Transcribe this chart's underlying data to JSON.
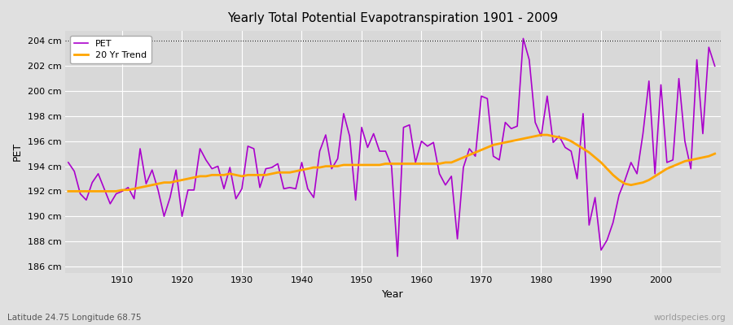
{
  "title": "Yearly Total Potential Evapotranspiration 1901 - 2009",
  "xlabel": "Year",
  "ylabel": "PET",
  "subtitle_left": "Latitude 24.75 Longitude 68.75",
  "subtitle_right": "worldspecies.org",
  "ylim": [
    185.5,
    204.8
  ],
  "yticks": [
    186,
    188,
    190,
    192,
    194,
    196,
    198,
    200,
    202,
    204
  ],
  "ytick_labels": [
    "186 cm",
    "188 cm",
    "190 cm",
    "192 cm",
    "194 cm",
    "196 cm",
    "198 cm",
    "200 cm",
    "202 cm",
    "204 cm"
  ],
  "xlim": [
    1900.5,
    2010
  ],
  "xticks": [
    1910,
    1920,
    1930,
    1940,
    1950,
    1960,
    1970,
    1980,
    1990,
    2000
  ],
  "pet_color": "#AA00CC",
  "trend_color": "#FFA500",
  "bg_color": "#E0E0E0",
  "plot_bg_color": "#D8D8D8",
  "grid_color": "#FFFFFF",
  "dotted_line_y": 204,
  "pet_years": [
    1901,
    1902,
    1903,
    1904,
    1905,
    1906,
    1907,
    1908,
    1909,
    1910,
    1911,
    1912,
    1913,
    1914,
    1915,
    1916,
    1917,
    1918,
    1919,
    1920,
    1921,
    1922,
    1923,
    1924,
    1925,
    1926,
    1927,
    1928,
    1929,
    1930,
    1931,
    1932,
    1933,
    1934,
    1935,
    1936,
    1937,
    1938,
    1939,
    1940,
    1941,
    1942,
    1943,
    1944,
    1945,
    1946,
    1947,
    1948,
    1949,
    1950,
    1951,
    1952,
    1953,
    1954,
    1955,
    1956,
    1957,
    1958,
    1959,
    1960,
    1961,
    1962,
    1963,
    1964,
    1965,
    1966,
    1967,
    1968,
    1969,
    1970,
    1971,
    1972,
    1973,
    1974,
    1975,
    1976,
    1977,
    1978,
    1979,
    1980,
    1981,
    1982,
    1983,
    1984,
    1985,
    1986,
    1987,
    1988,
    1989,
    1990,
    1991,
    1992,
    1993,
    1994,
    1995,
    1996,
    1997,
    1998,
    1999,
    2000,
    2001,
    2002,
    2003,
    2004,
    2005,
    2006,
    2007,
    2008,
    2009
  ],
  "pet_values": [
    194.3,
    193.6,
    191.8,
    191.3,
    192.7,
    193.4,
    192.2,
    191.0,
    191.8,
    192.0,
    192.3,
    191.4,
    195.4,
    192.6,
    193.7,
    192.1,
    190.0,
    191.5,
    193.7,
    190.0,
    192.1,
    192.1,
    195.4,
    194.5,
    193.8,
    194.0,
    192.2,
    193.9,
    191.4,
    192.2,
    195.6,
    195.4,
    192.3,
    193.8,
    193.9,
    194.2,
    192.2,
    192.3,
    192.2,
    194.3,
    192.2,
    191.5,
    195.2,
    196.5,
    193.8,
    194.6,
    198.2,
    196.4,
    191.3,
    197.1,
    195.5,
    196.6,
    195.2,
    195.2,
    194.0,
    186.8,
    197.1,
    197.3,
    194.3,
    196.0,
    195.6,
    195.9,
    193.4,
    192.5,
    193.2,
    188.2,
    193.9,
    195.4,
    194.8,
    199.6,
    199.4,
    194.8,
    194.5,
    197.5,
    197.0,
    197.2,
    204.2,
    202.5,
    197.5,
    196.4,
    199.6,
    195.9,
    196.4,
    195.5,
    195.2,
    193.0,
    198.2,
    189.3,
    191.5,
    187.3,
    188.1,
    189.5,
    191.7,
    192.9,
    194.3,
    193.4,
    196.6,
    200.8,
    193.4,
    200.5,
    194.3,
    194.5,
    201.0,
    196.0,
    193.8,
    202.5,
    196.6,
    203.5,
    202.0
  ],
  "trend_years": [
    1901,
    1902,
    1903,
    1904,
    1905,
    1906,
    1907,
    1908,
    1909,
    1910,
    1911,
    1912,
    1913,
    1914,
    1915,
    1916,
    1917,
    1918,
    1919,
    1920,
    1921,
    1922,
    1923,
    1924,
    1925,
    1926,
    1927,
    1928,
    1929,
    1930,
    1931,
    1932,
    1933,
    1934,
    1935,
    1936,
    1937,
    1938,
    1939,
    1940,
    1941,
    1942,
    1943,
    1944,
    1945,
    1946,
    1947,
    1948,
    1949,
    1950,
    1951,
    1952,
    1953,
    1954,
    1955,
    1956,
    1957,
    1958,
    1959,
    1960,
    1961,
    1962,
    1963,
    1964,
    1965,
    1966,
    1967,
    1968,
    1969,
    1970,
    1971,
    1972,
    1973,
    1974,
    1975,
    1976,
    1977,
    1978,
    1979,
    1980,
    1981,
    1982,
    1983,
    1984,
    1985,
    1986,
    1987,
    1988,
    1989,
    1990,
    1991,
    1992,
    1993,
    1994,
    1995,
    1996,
    1997,
    1998,
    1999,
    2000,
    2001,
    2002,
    2003,
    2004,
    2005,
    2006,
    2007,
    2008,
    2009
  ],
  "trend_values": [
    192.0,
    192.0,
    192.0,
    192.0,
    192.0,
    192.0,
    192.0,
    192.0,
    192.0,
    192.1,
    192.1,
    192.2,
    192.3,
    192.4,
    192.5,
    192.6,
    192.7,
    192.7,
    192.8,
    192.9,
    193.0,
    193.1,
    193.2,
    193.2,
    193.3,
    193.3,
    193.3,
    193.4,
    193.3,
    193.2,
    193.3,
    193.3,
    193.3,
    193.3,
    193.4,
    193.5,
    193.5,
    193.5,
    193.6,
    193.7,
    193.8,
    193.9,
    193.9,
    194.0,
    194.0,
    194.0,
    194.1,
    194.1,
    194.1,
    194.1,
    194.1,
    194.1,
    194.1,
    194.2,
    194.2,
    194.2,
    194.2,
    194.2,
    194.2,
    194.2,
    194.2,
    194.2,
    194.2,
    194.3,
    194.3,
    194.5,
    194.7,
    194.9,
    195.1,
    195.3,
    195.5,
    195.7,
    195.8,
    195.9,
    196.0,
    196.1,
    196.2,
    196.3,
    196.4,
    196.5,
    196.5,
    196.4,
    196.3,
    196.2,
    196.0,
    195.7,
    195.4,
    195.1,
    194.7,
    194.3,
    193.8,
    193.3,
    192.9,
    192.6,
    192.5,
    192.6,
    192.7,
    192.9,
    193.2,
    193.5,
    193.8,
    194.0,
    194.2,
    194.4,
    194.5,
    194.6,
    194.7,
    194.8,
    195.0
  ]
}
